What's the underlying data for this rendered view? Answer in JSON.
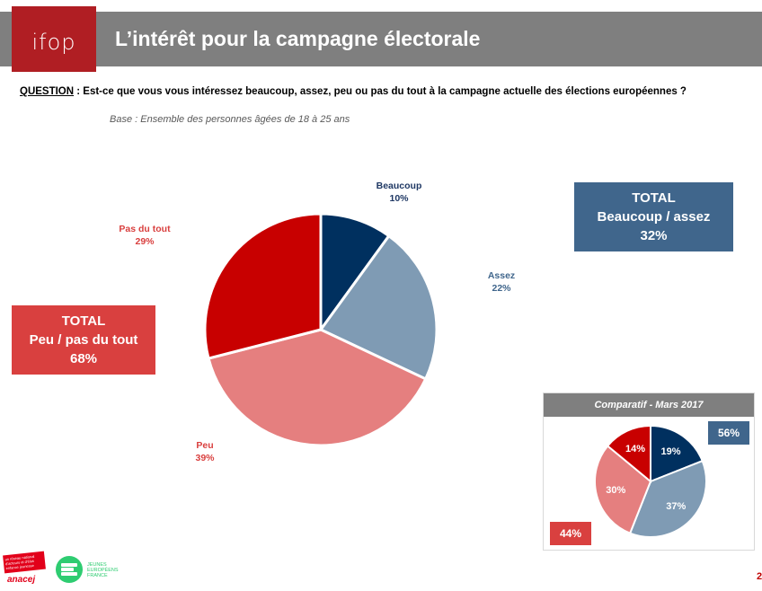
{
  "header": {
    "logo_text": "ifop",
    "title": "L’intérêt pour la campagne électorale"
  },
  "question": {
    "label": "QUESTION",
    "text": " : Est-ce que vous vous intéressez beaucoup, assez, peu ou pas du tout à la campagne actuelle des élections européennes ?"
  },
  "base": "Base : Ensemble des personnes âgées de 18 à 25 ans",
  "colors": {
    "beaucoup": "#00305f",
    "assez": "#7f9bb4",
    "peu": "#e57f7f",
    "pas_du_tout": "#c80000",
    "total_blue": "#40668c",
    "total_red": "#d9403f"
  },
  "chart_data": [
    {
      "type": "pie",
      "title": "L’intérêt pour la campagne électorale",
      "categories": [
        "Beaucoup",
        "Assez",
        "Peu",
        "Pas du tout"
      ],
      "values": [
        10,
        22,
        39,
        29
      ],
      "labels": [
        "10%",
        "22%",
        "39%",
        "29%"
      ],
      "start": "12 o'clock, clockwise"
    },
    {
      "type": "pie",
      "title": "Comparatif - Mars 2017",
      "categories": [
        "Beaucoup",
        "Assez",
        "Peu",
        "Pas du tout"
      ],
      "values": [
        19,
        37,
        30,
        14
      ],
      "labels": [
        "19%",
        "37%",
        "30%",
        "14%"
      ],
      "start": "12 o'clock, clockwise"
    }
  ],
  "totals": {
    "positive": {
      "line1": "TOTAL",
      "line2": "Beaucoup / assez",
      "value": "32%"
    },
    "negative": {
      "line1": "TOTAL",
      "line2": "Peu / pas du tout",
      "value": "68%"
    }
  },
  "inset": {
    "header": "Comparatif - Mars 2017",
    "total_positive": "56%",
    "total_negative": "44%"
  },
  "footer": {
    "anacej_tagline": "un réseau national d'acteurs et d'élus enfance jeunesse",
    "anacej_name": "anacej",
    "jef_name": "JEUNES EUROPÉENS FRANCE",
    "page_number": "2"
  }
}
